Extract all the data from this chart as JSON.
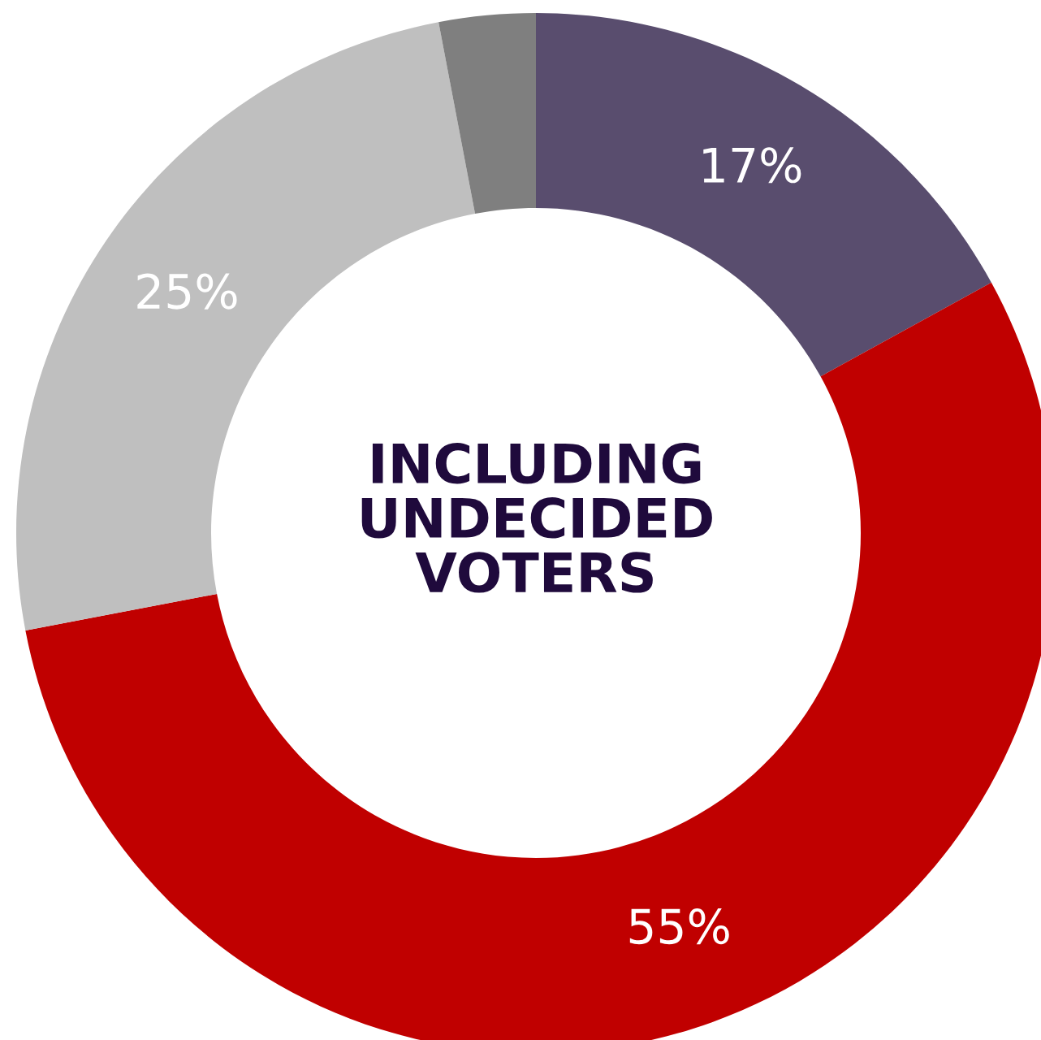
{
  "chart_data": {
    "type": "donut",
    "categories": [
      null,
      null,
      null,
      null
    ],
    "values": [
      17,
      55,
      25,
      3
    ],
    "colors": [
      "#594d6e",
      "#c00000",
      "#bfbfbf",
      "#7f7f7f"
    ],
    "value_labels": [
      "17%",
      "55%",
      "25%",
      null
    ],
    "annotations": [
      "INCLUDING\nUNDECIDED\nVOTERS"
    ],
    "legend": false
  }
}
